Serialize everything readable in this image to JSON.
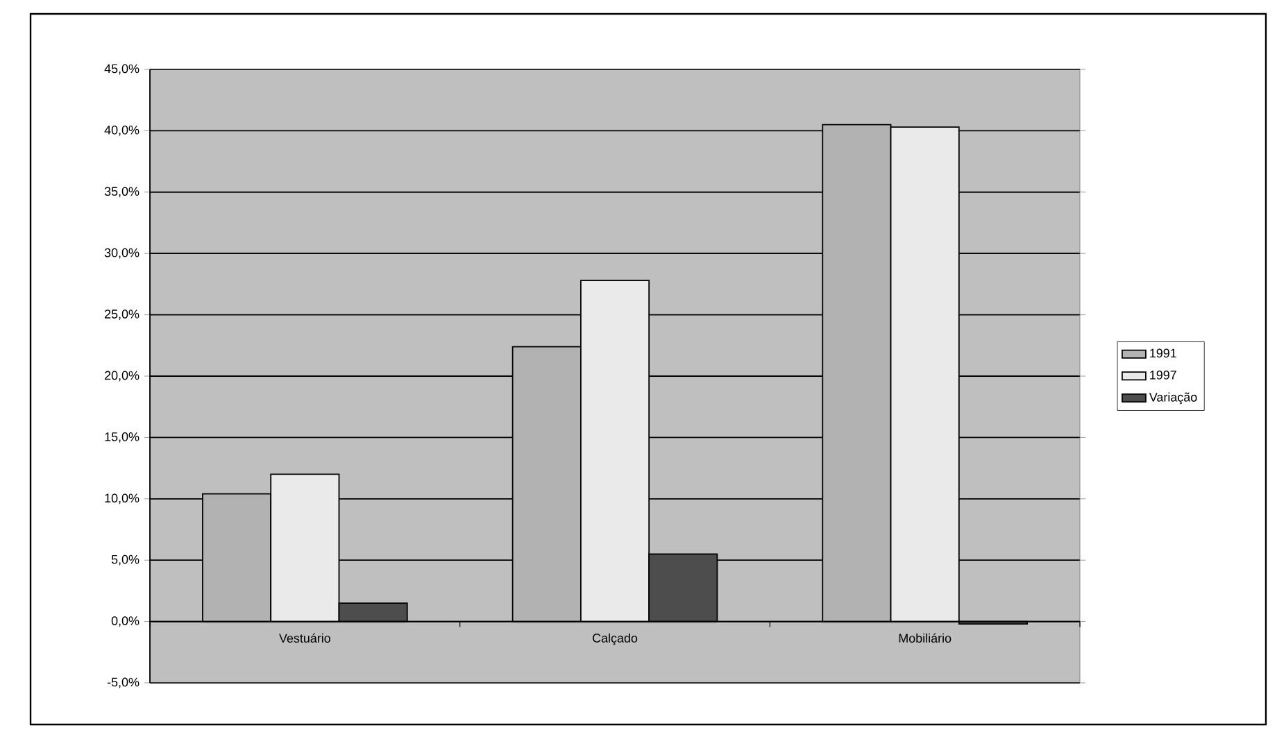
{
  "chart_data": {
    "type": "bar",
    "categories": [
      "Vestuário",
      "Calçado",
      "Mobiliário"
    ],
    "series": [
      {
        "name": "1991",
        "color": "#b2b2b2",
        "values": [
          10.4,
          22.4,
          40.5
        ]
      },
      {
        "name": "1997",
        "color": "#eaeaea",
        "values": [
          12.0,
          27.8,
          40.3
        ]
      },
      {
        "name": "Variação",
        "color": "#4d4d4d",
        "values": [
          1.5,
          5.5,
          -0.2
        ]
      }
    ],
    "ylim": [
      -5,
      45
    ],
    "yticks": [
      {
        "value": -5,
        "label": "-5,0%"
      },
      {
        "value": 0,
        "label": "0,0%"
      },
      {
        "value": 5,
        "label": "5,0%"
      },
      {
        "value": 10,
        "label": "10,0%"
      },
      {
        "value": 15,
        "label": "15,0%"
      },
      {
        "value": 20,
        "label": "20,0%"
      },
      {
        "value": 25,
        "label": "25,0%"
      },
      {
        "value": 30,
        "label": "30,0%"
      },
      {
        "value": 35,
        "label": "35,0%"
      },
      {
        "value": 40,
        "label": "40,0%"
      },
      {
        "value": 45,
        "label": "45,0%"
      }
    ],
    "grid": "y",
    "legend": "right"
  }
}
